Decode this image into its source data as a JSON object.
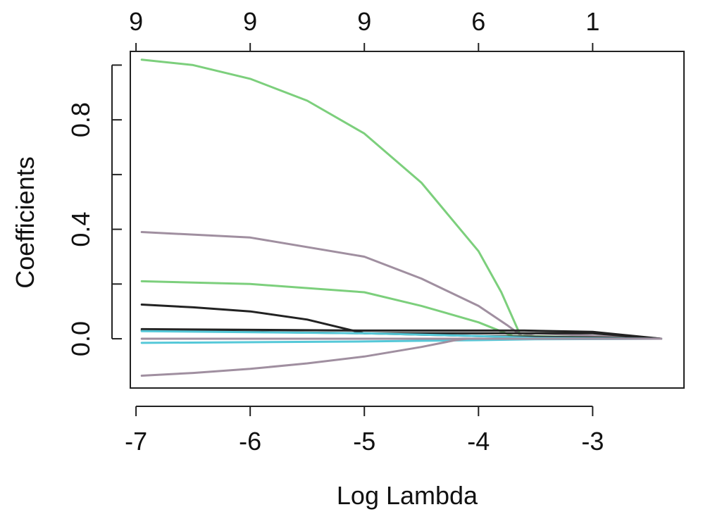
{
  "chart_data": {
    "type": "line",
    "title": "",
    "xlabel": "Log Lambda",
    "ylabel": "Coefficients",
    "xlim": [
      -7.05,
      -2.2
    ],
    "ylim": [
      -0.18,
      1.05
    ],
    "x_ticks": [
      -7,
      -6,
      -5,
      -4,
      -3
    ],
    "x_tick_labels": [
      "-7",
      "-6",
      "-5",
      "-4",
      "-3"
    ],
    "y_ticks": [
      0.0,
      0.2,
      0.4,
      0.6,
      0.8,
      1.0
    ],
    "y_tick_labels": [
      "0.0",
      "",
      "0.4",
      "",
      "0.8",
      ""
    ],
    "top_axis": {
      "ticks": [
        -7,
        -6,
        -5,
        -4,
        -3
      ],
      "tick_labels": [
        "9",
        "9",
        "9",
        "6",
        "1"
      ]
    },
    "grid": false,
    "series": [
      {
        "color": "#7ccf7c",
        "points": [
          [
            -6.95,
            1.02
          ],
          [
            -6.5,
            1.0
          ],
          [
            -6.0,
            0.95
          ],
          [
            -5.5,
            0.87
          ],
          [
            -5.0,
            0.75
          ],
          [
            -4.5,
            0.57
          ],
          [
            -4.0,
            0.32
          ],
          [
            -3.8,
            0.17
          ],
          [
            -3.62,
            0.0
          ],
          [
            -2.4,
            0.0
          ]
        ]
      },
      {
        "color": "#a08fa0",
        "points": [
          [
            -6.95,
            0.39
          ],
          [
            -6.0,
            0.37
          ],
          [
            -5.0,
            0.3
          ],
          [
            -4.5,
            0.22
          ],
          [
            -4.0,
            0.12
          ],
          [
            -3.75,
            0.05
          ],
          [
            -3.62,
            0.01
          ],
          [
            -3.5,
            0.02
          ],
          [
            -2.4,
            0.0
          ]
        ]
      },
      {
        "color": "#7ccf7c",
        "points": [
          [
            -6.95,
            0.21
          ],
          [
            -6.0,
            0.2
          ],
          [
            -5.0,
            0.17
          ],
          [
            -4.5,
            0.12
          ],
          [
            -4.0,
            0.06
          ],
          [
            -3.7,
            0.01
          ],
          [
            -3.6,
            0.01
          ],
          [
            -2.4,
            0.0
          ]
        ]
      },
      {
        "color": "#222222",
        "points": [
          [
            -6.95,
            0.125
          ],
          [
            -6.5,
            0.115
          ],
          [
            -6.0,
            0.1
          ],
          [
            -5.5,
            0.07
          ],
          [
            -5.1,
            0.03
          ],
          [
            -5.0,
            0.02
          ],
          [
            -4.0,
            0.02
          ],
          [
            -3.0,
            0.02
          ],
          [
            -2.4,
            0.0
          ]
        ]
      },
      {
        "color": "#222222",
        "points": [
          [
            -6.95,
            0.035
          ],
          [
            -5.0,
            0.03
          ],
          [
            -4.0,
            0.03
          ],
          [
            -3.6,
            0.03
          ],
          [
            -3.0,
            0.025
          ],
          [
            -2.4,
            0.0
          ]
        ]
      },
      {
        "color": "#333333",
        "points": [
          [
            -6.95,
            0.03
          ],
          [
            -5.0,
            0.02
          ],
          [
            -4.0,
            0.01
          ],
          [
            -3.0,
            0.005
          ],
          [
            -2.4,
            0.0
          ]
        ]
      },
      {
        "color": "#55c8d8",
        "points": [
          [
            -6.95,
            0.028
          ],
          [
            -5.0,
            0.02
          ],
          [
            -4.0,
            0.01
          ],
          [
            -3.5,
            0.003
          ],
          [
            -2.4,
            0.0
          ]
        ]
      },
      {
        "color": "#55c8d8",
        "points": [
          [
            -6.95,
            -0.015
          ],
          [
            -5.0,
            -0.01
          ],
          [
            -4.0,
            -0.005
          ],
          [
            -3.5,
            -0.002
          ],
          [
            -2.4,
            0.0
          ]
        ]
      },
      {
        "color": "#a08fa0",
        "points": [
          [
            -6.95,
            0.0
          ],
          [
            -5.0,
            0.0
          ],
          [
            -4.0,
            0.0
          ],
          [
            -2.4,
            0.0
          ]
        ]
      },
      {
        "color": "#a08fa0",
        "points": [
          [
            -6.95,
            -0.135
          ],
          [
            -6.5,
            -0.125
          ],
          [
            -6.0,
            -0.11
          ],
          [
            -5.5,
            -0.09
          ],
          [
            -5.0,
            -0.065
          ],
          [
            -4.5,
            -0.03
          ],
          [
            -4.2,
            -0.005
          ],
          [
            -4.1,
            0.0
          ],
          [
            -2.4,
            0.0
          ]
        ]
      }
    ]
  }
}
